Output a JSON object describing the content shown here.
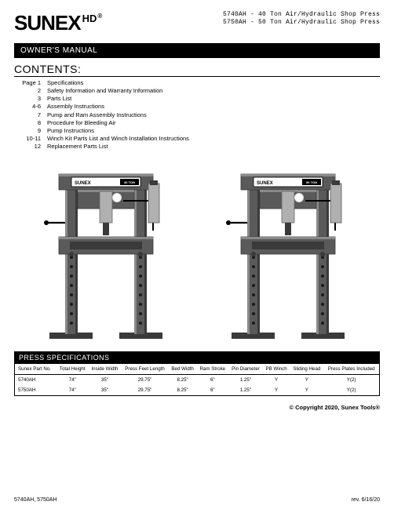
{
  "header": {
    "logo_main": "SUNEX",
    "logo_hd": "HD",
    "logo_reg": "®",
    "product_line_1": "5740AH - 40 Ton Air/Hydraulic Shop Press",
    "product_line_2": "5750AH - 50 Ton Air/Hydraulic Shop Press"
  },
  "manual_bar": "OWNER'S MANUAL",
  "contents_title": "CONTENTS:",
  "toc_page_label": "Page",
  "toc": [
    {
      "page": "1",
      "label": "Specifications"
    },
    {
      "page": "2",
      "label": "Safety Information and Warranty Information"
    },
    {
      "page": "3",
      "label": "Parts List"
    },
    {
      "page": "4-6",
      "label": "Assembly Instructions"
    },
    {
      "page": "7",
      "label": "Pump and Ram Assembly Instructions"
    },
    {
      "page": "8",
      "label": "Procedure for Bleeding Air"
    },
    {
      "page": "9",
      "label": "Pump Instructions"
    },
    {
      "page": "10-11",
      "label": "Winch Kit Parts List and Winch Installation Instructions"
    },
    {
      "page": "12",
      "label": "Replacement Parts List"
    }
  ],
  "press_images": {
    "label_brand": "SUNEX",
    "left_ton": "40 TON",
    "right_ton": "50 TON",
    "colors": {
      "frame": "#5a5a5a",
      "frame_light": "#8a8a8a",
      "frame_dark": "#3a3a3a",
      "ram": "#b0b0b0",
      "label_bg": "#ffffff"
    }
  },
  "spec_bar": "PRESS SPECIFICATIONS",
  "spec_headers": [
    "Sunex Part No.",
    "Total Height",
    "Inside Width",
    "Press Feet Length",
    "Bed Width",
    "Ram Stroke",
    "Pin Diameter",
    "PB Winch",
    "Sliding Head",
    "Press Plates Included"
  ],
  "spec_rows": [
    [
      "5740AH",
      "74\"",
      "35\"",
      "29.75\"",
      "8.25\"",
      "6\"",
      "1.25\"",
      "Y",
      "Y",
      "Y(2)"
    ],
    [
      "5750AH",
      "74\"",
      "35\"",
      "29.75\"",
      "8.25\"",
      "6\"",
      "1.25\"",
      "Y",
      "Y",
      "Y(2)"
    ]
  ],
  "copyright": "© Copyright 2020, Sunex Tools®",
  "footer_left": "5740AH, 5750AH",
  "footer_right": "rev. 6/16/20"
}
